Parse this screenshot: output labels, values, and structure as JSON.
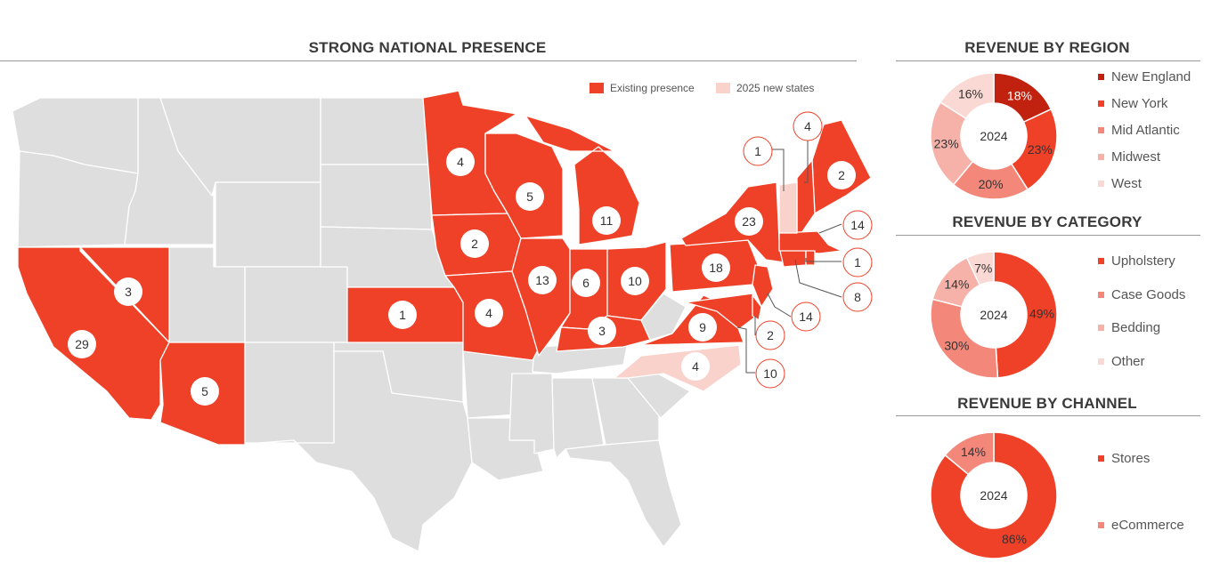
{
  "map": {
    "title": "STRONG NATIONAL PRESENCE",
    "legend": [
      {
        "label": "Existing presence",
        "color": "#ee4128"
      },
      {
        "label": "2025 new states",
        "color": "#fad2cc"
      }
    ],
    "colors": {
      "base": "#dedede",
      "existing": "#ee4128",
      "new": "#fad2cc"
    },
    "state_counts": [
      {
        "state": "California",
        "count": "29"
      },
      {
        "state": "Nevada",
        "count": "3"
      },
      {
        "state": "Arizona",
        "count": "5"
      },
      {
        "state": "Kansas",
        "count": "1"
      },
      {
        "state": "Minnesota",
        "count": "4"
      },
      {
        "state": "Iowa",
        "count": "2"
      },
      {
        "state": "Missouri",
        "count": "4"
      },
      {
        "state": "Wisconsin",
        "count": "5"
      },
      {
        "state": "Illinois",
        "count": "13"
      },
      {
        "state": "Indiana",
        "count": "6"
      },
      {
        "state": "Michigan",
        "count": "11"
      },
      {
        "state": "Ohio",
        "count": "10"
      },
      {
        "state": "Kentucky",
        "count": "3"
      },
      {
        "state": "Pennsylvania",
        "count": "18"
      },
      {
        "state": "New York",
        "count": "23"
      },
      {
        "state": "Virginia",
        "count": "9"
      },
      {
        "state": "North Carolina",
        "count": "4"
      },
      {
        "state": "Maine",
        "count": "2"
      },
      {
        "state": "Vermont",
        "count": "1"
      },
      {
        "state": "New Hampshire",
        "count": "4"
      },
      {
        "state": "Massachusetts",
        "count": "14"
      },
      {
        "state": "Rhode Island",
        "count": "1"
      },
      {
        "state": "Connecticut",
        "count": "8"
      },
      {
        "state": "New Jersey",
        "count": "14"
      },
      {
        "state": "Delaware",
        "count": "2"
      },
      {
        "state": "Maryland",
        "count": "10"
      }
    ]
  },
  "chart_data": [
    {
      "type": "pie",
      "title": "REVENUE  BY REGION",
      "center_label": "2024",
      "categories": [
        "New England",
        "New York",
        "Mid Atlantic",
        "Midwest",
        "West"
      ],
      "values": [
        18,
        23,
        20,
        23,
        16
      ],
      "labels": [
        "18%",
        "23%",
        "20%",
        "23%",
        "16%"
      ],
      "colors": [
        "#c1220f",
        "#ee4128",
        "#f2877a",
        "#f6b1a9",
        "#fad8d3"
      ]
    },
    {
      "type": "pie",
      "title": "REVENUE  BY CATEGORY",
      "center_label": "2024",
      "categories": [
        "Upholstery",
        "Case Goods",
        "Bedding",
        "Other"
      ],
      "values": [
        49,
        30,
        14,
        7
      ],
      "labels": [
        "49%",
        "30%",
        "14%",
        "7%"
      ],
      "colors": [
        "#ee4128",
        "#f2877a",
        "#f6b1a9",
        "#fad8d3"
      ]
    },
    {
      "type": "pie",
      "title": "REVENUE  BY CHANNEL",
      "center_label": "2024",
      "categories": [
        "Stores",
        "eCommerce"
      ],
      "values": [
        86,
        14
      ],
      "labels": [
        "86%",
        "14%"
      ],
      "colors": [
        "#ee4128",
        "#f2877a"
      ]
    }
  ]
}
